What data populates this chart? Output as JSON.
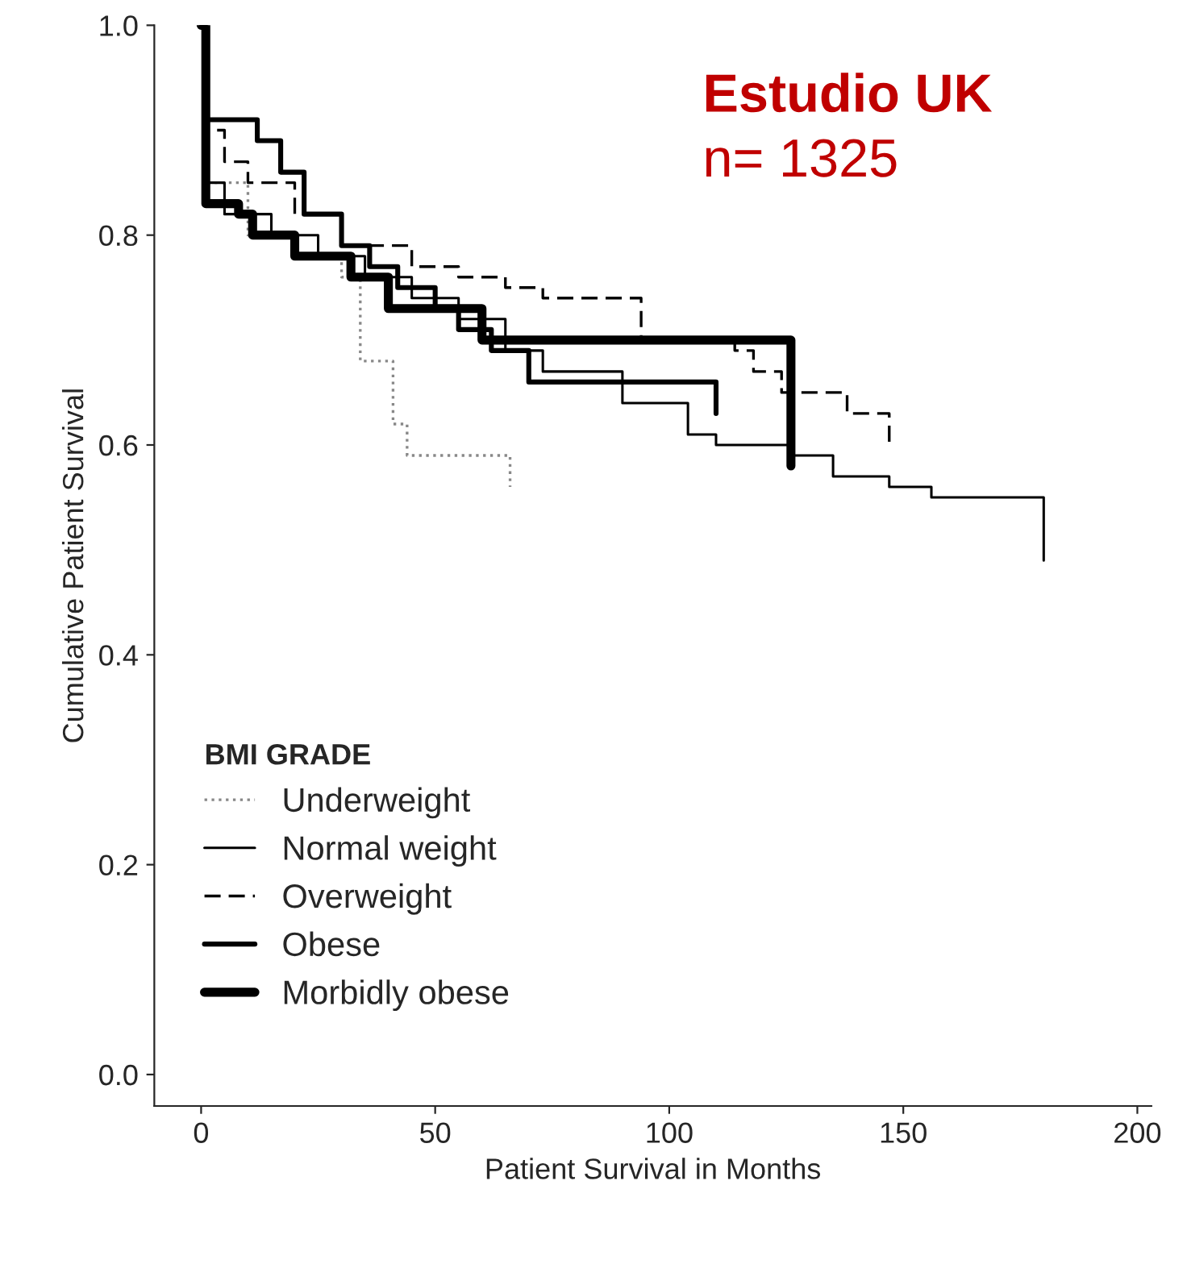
{
  "chart_data": {
    "type": "step",
    "xlabel": "Patient Survival in Months",
    "ylabel": "Cumulative Patient Survival",
    "legend_title": "BMI GRADE",
    "legend": "bottom left",
    "grid": false,
    "xlim": [
      -10,
      203
    ],
    "ylim": [
      -0.03,
      1.0
    ],
    "xticks": [
      0,
      50,
      100,
      150,
      200
    ],
    "yticks": [
      {
        "value": 0,
        "label": "0.0"
      },
      0.2,
      0.4,
      0.6,
      0.8,
      {
        "value": 1,
        "label": "1.0"
      }
    ],
    "annotations": [
      "Estudio UK",
      "n= 1325"
    ],
    "series": [
      {
        "name": "Underweight",
        "color": "#888888",
        "line_style": "dotted",
        "x": [
          0,
          1,
          10,
          20,
          30,
          34,
          41,
          44,
          66,
          66
        ],
        "values": [
          1.0,
          0.85,
          0.8,
          0.78,
          0.76,
          0.68,
          0.62,
          0.59,
          0.56,
          0.56
        ]
      },
      {
        "name": "Normal weight",
        "color": "#000000",
        "line_style": "solid",
        "x": [
          0,
          1,
          5,
          15,
          25,
          35,
          45,
          55,
          65,
          73,
          90,
          104,
          110,
          126,
          135,
          147,
          156,
          180,
          180
        ],
        "values": [
          1.0,
          0.85,
          0.82,
          0.8,
          0.78,
          0.76,
          0.74,
          0.72,
          0.69,
          0.67,
          0.64,
          0.61,
          0.6,
          0.59,
          0.57,
          0.56,
          0.55,
          0.49,
          0.49
        ]
      },
      {
        "name": "Overweight",
        "color": "#000000",
        "line_style": "dashed",
        "x": [
          0,
          1,
          5,
          10,
          20,
          30,
          45,
          55,
          65,
          73,
          94,
          114,
          118,
          124,
          138,
          147,
          147
        ],
        "values": [
          1.0,
          0.9,
          0.87,
          0.85,
          0.82,
          0.79,
          0.77,
          0.76,
          0.75,
          0.74,
          0.7,
          0.69,
          0.67,
          0.65,
          0.63,
          0.6,
          0.6
        ]
      },
      {
        "name": "Obese",
        "color": "#000000",
        "line_style": "solid",
        "x": [
          0,
          1,
          12,
          17,
          22,
          30,
          36,
          42,
          50,
          55,
          62,
          70,
          110,
          110
        ],
        "values": [
          1.0,
          0.91,
          0.89,
          0.86,
          0.82,
          0.79,
          0.77,
          0.75,
          0.73,
          0.71,
          0.69,
          0.66,
          0.63,
          0.63
        ]
      },
      {
        "name": "Morbidly obese",
        "color": "#000000",
        "line_style": "solid",
        "x": [
          0,
          1,
          8,
          11,
          20,
          32,
          40,
          60,
          126,
          126
        ],
        "values": [
          1.0,
          0.83,
          0.82,
          0.8,
          0.78,
          0.76,
          0.73,
          0.7,
          0.58,
          0.58
        ]
      }
    ]
  }
}
